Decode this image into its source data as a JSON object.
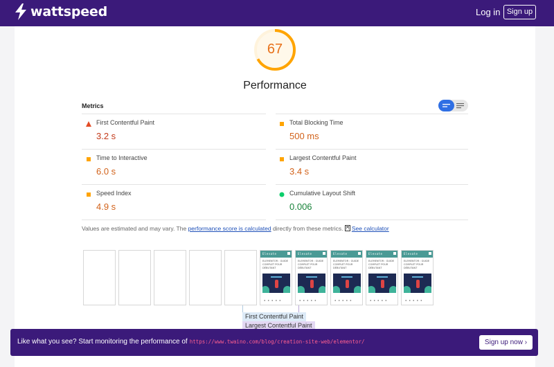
{
  "header": {
    "logo_text": "wattspeed",
    "login_label": "Log in",
    "signup_label": "Sign up"
  },
  "score": {
    "value": "67",
    "fraction": 0.67,
    "category": "Performance",
    "color": "#ffa400"
  },
  "metrics": {
    "title": "Metrics",
    "items": [
      {
        "name": "First Contentful Paint",
        "value": "3.2 s",
        "status": "fail",
        "color": "#e34c26"
      },
      {
        "name": "Total Blocking Time",
        "value": "500 ms",
        "status": "average",
        "color": "#e8711a"
      },
      {
        "name": "Time to Interactive",
        "value": "6.0 s",
        "status": "average",
        "color": "#e8711a"
      },
      {
        "name": "Largest Contentful Paint",
        "value": "3.4 s",
        "status": "average",
        "color": "#e8711a"
      },
      {
        "name": "Speed Index",
        "value": "4.9 s",
        "status": "average",
        "color": "#e8711a"
      },
      {
        "name": "Cumulative Layout Shift",
        "value": "0.006",
        "status": "pass",
        "color": "#178239"
      }
    ]
  },
  "note": {
    "prefix": "Values are estimated and may vary. The ",
    "link1": "performance score is calculated",
    "middle": " directly from these metrics. ",
    "link2": "See calculator"
  },
  "filmstrip": {
    "frame_header": "Elevate",
    "frame_text": "ELEMENTOR : GUIDE COMPLET POUR DÉBUTANT",
    "markers": {
      "fcp": "First Contentful Paint",
      "lcp": "Largest Contentful Paint"
    }
  },
  "banner": {
    "text": "Like what you see? Start monitoring the performance of",
    "url": "https://www.twaino.com/blog/creation-site-web/elementor/",
    "button": "Sign up now ›"
  }
}
